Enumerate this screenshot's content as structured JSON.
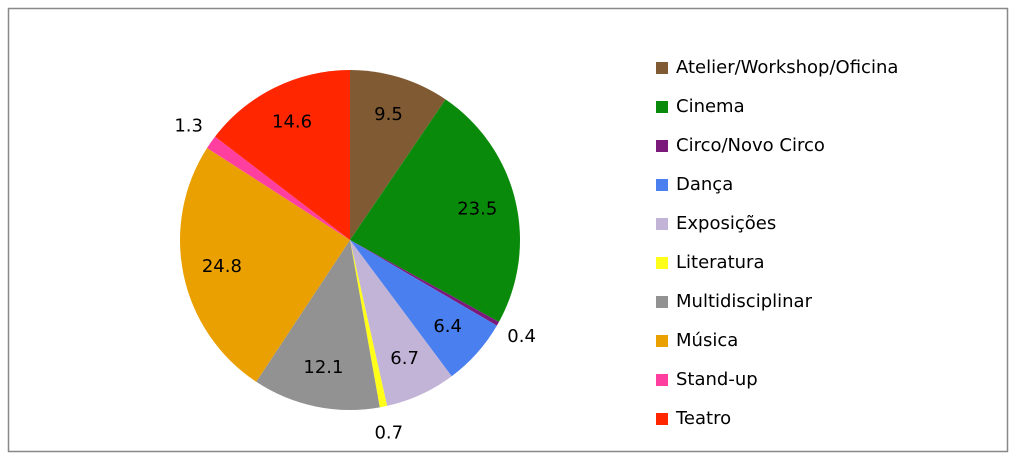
{
  "chart_data": {
    "type": "pie",
    "categories": [
      "Atelier/Workshop/Oficina",
      "Cinema",
      "Circo/Novo Circo",
      "Dança",
      "Exposições",
      "Literatura",
      "Multidisciplinar",
      "Música",
      "Stand-up",
      "Teatro"
    ],
    "values": [
      9.5,
      23.5,
      0.4,
      6.4,
      6.7,
      0.7,
      12.1,
      24.8,
      1.3,
      14.6
    ],
    "colors": [
      "#7f5a32",
      "#0a8a0a",
      "#7b1a7b",
      "#4a7ff0",
      "#c2b4d6",
      "#ffff1a",
      "#929292",
      "#eaa000",
      "#ff3fa0",
      "#ff2600"
    ],
    "legend": "right"
  }
}
